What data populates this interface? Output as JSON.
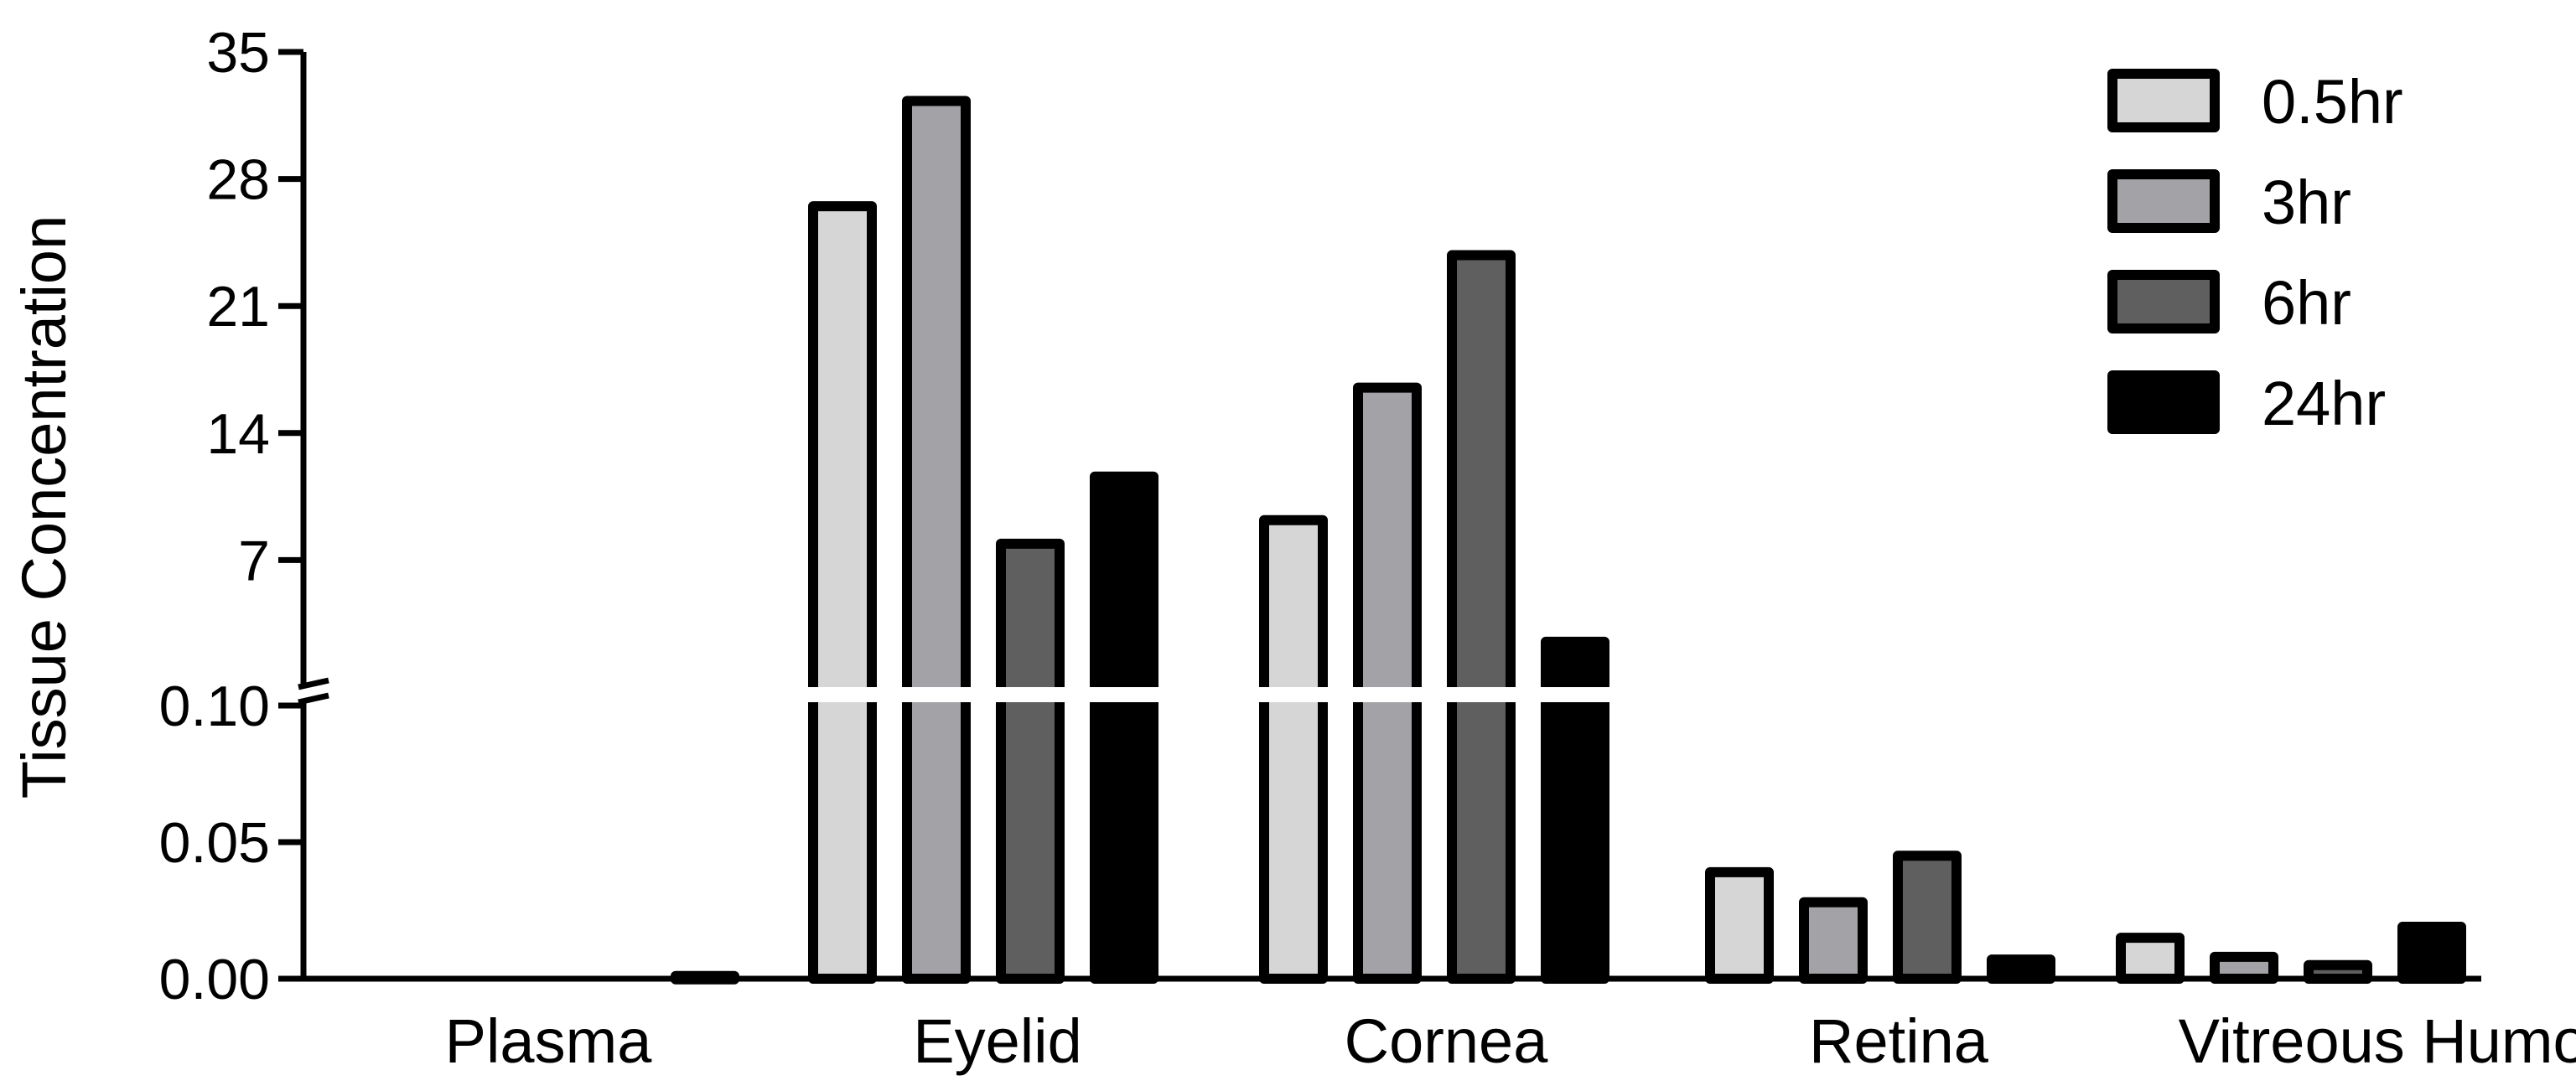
{
  "chart_data": {
    "type": "bar",
    "ylabel": "Tissue Concentration",
    "categories": [
      "Plasma",
      "Eyelid",
      "Cornea",
      "Retina",
      "Vitreous Humor"
    ],
    "axis_break": true,
    "lower_segment": {
      "ylim": [
        0,
        0.1
      ],
      "ticks": [
        "0.00",
        "0.05",
        "0.10"
      ]
    },
    "upper_segment": {
      "ylim": [
        0,
        35
      ],
      "ticks": [
        "7",
        "14",
        "21",
        "28",
        "35"
      ]
    },
    "series": [
      {
        "name": "0.5hr",
        "color": "#d6d6d6",
        "values": [
          0,
          26.5,
          9.2,
          0.039,
          0.015
        ]
      },
      {
        "name": "3hr",
        "color": "#a3a3a7",
        "values": [
          0,
          32.3,
          16.5,
          0.028,
          0.008
        ]
      },
      {
        "name": "6hr",
        "color": "#5f5f5f",
        "values": [
          0.001,
          7.9,
          23.8,
          0.045,
          0.005
        ]
      },
      {
        "name": "24hr",
        "color": "#000000",
        "values": [
          0,
          11.6,
          2.5,
          0.007,
          0.019
        ]
      }
    ],
    "legend_position": "top-right",
    "grid": false
  }
}
